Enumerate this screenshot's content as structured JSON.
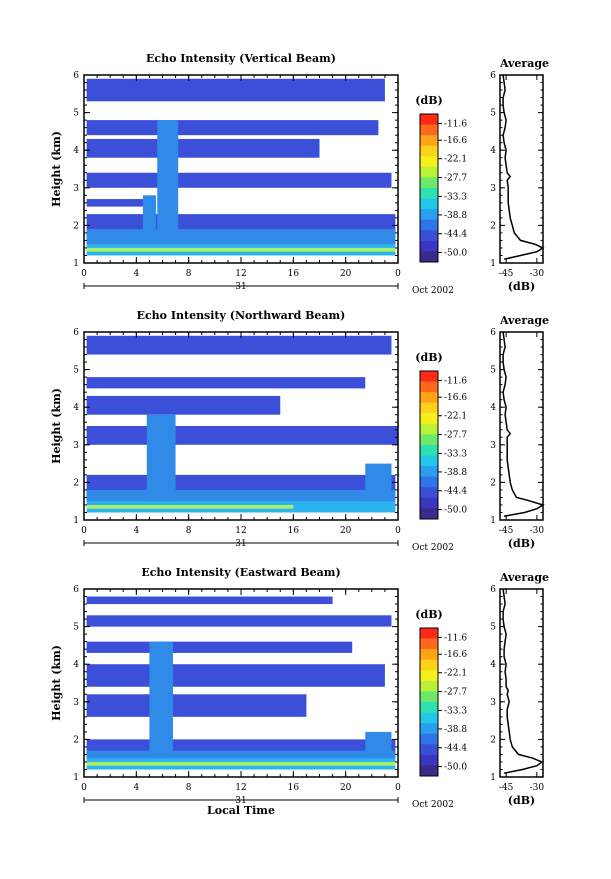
{
  "chart_data": [
    {
      "type": "heatmap",
      "title": "Echo Intensity (Vertical Beam)",
      "ylabel": "Height (km)",
      "xlabel": "",
      "x_ticks": [
        "0",
        "4",
        "8",
        "12",
        "16",
        "20",
        "0"
      ],
      "y_ticks": [
        "1",
        "2",
        "3",
        "4",
        "5",
        "6"
      ],
      "xlim": [
        0,
        24
      ],
      "ylim": [
        1,
        6
      ],
      "date_label": "31",
      "month_label": "Oct 2002",
      "colorbar": {
        "label": "(dB)",
        "ticks": [
          "-11.6",
          "-16.6",
          "-22.1",
          "-27.7",
          "-33.3",
          "-38.8",
          "-44.4",
          "-50.0"
        ],
        "range": [
          -52.8,
          -8.8
        ]
      },
      "profile": {
        "title": "Average",
        "xlabel": "(dB)",
        "x_ticks": [
          "-45",
          "-30"
        ],
        "xlim": [
          -48,
          -27
        ],
        "heights": [
          1.1,
          1.2,
          1.3,
          1.4,
          1.5,
          1.6,
          1.8,
          2.0,
          2.2,
          2.4,
          2.6,
          2.8,
          3.0,
          3.2,
          3.3,
          3.4,
          3.6,
          3.8,
          4.0,
          4.2,
          4.4,
          4.6,
          4.8,
          5.0,
          5.2,
          5.4,
          5.6,
          5.8,
          6.0
        ],
        "values": [
          -46,
          -38,
          -30,
          -27,
          -31,
          -38,
          -41,
          -42,
          -43,
          -43.5,
          -44,
          -44,
          -44,
          -44.5,
          -43,
          -44.5,
          -45,
          -45.5,
          -45,
          -46,
          -46.5,
          -45.5,
          -45,
          -46,
          -46.5,
          -46.5,
          -45.5,
          -46,
          -46.5
        ]
      },
      "bands": [
        {
          "y0": 1.2,
          "y1": 1.5,
          "x0": 0.2,
          "x1": 23.8,
          "c": "#2bb3f0"
        },
        {
          "y0": 1.3,
          "y1": 1.4,
          "x0": 0.2,
          "x1": 23.8,
          "c": "#a9f06a"
        },
        {
          "y0": 1.5,
          "y1": 2.3,
          "x0": 0.2,
          "x1": 23.8,
          "c": "#3b4fd8"
        },
        {
          "y0": 1.5,
          "y1": 1.9,
          "x0": 0.2,
          "x1": 23.8,
          "c": "#2f8ae8"
        },
        {
          "y0": 2.5,
          "y1": 2.7,
          "x0": 0.2,
          "x1": 5.0,
          "c": "#3b4fd8"
        },
        {
          "y0": 3.0,
          "y1": 3.4,
          "x0": 0.2,
          "x1": 23.5,
          "c": "#3b4fd8"
        },
        {
          "y0": 3.8,
          "y1": 4.3,
          "x0": 0.2,
          "x1": 18.0,
          "c": "#3b4fd8"
        },
        {
          "y0": 4.4,
          "y1": 4.8,
          "x0": 0.2,
          "x1": 22.5,
          "c": "#3b4fd8"
        },
        {
          "y0": 5.3,
          "y1": 5.9,
          "x0": 0.2,
          "x1": 23.0,
          "c": "#3b4fd8"
        },
        {
          "y0": 1.5,
          "y1": 4.8,
          "x0": 5.6,
          "x1": 7.2,
          "c": "#2f8ae8"
        },
        {
          "y0": 1.5,
          "y1": 2.8,
          "x0": 4.5,
          "x1": 5.5,
          "c": "#2f8ae8"
        }
      ]
    },
    {
      "type": "heatmap",
      "title": "Echo Intensity (Northward Beam)",
      "ylabel": "Height (km)",
      "xlabel": "",
      "x_ticks": [
        "0",
        "4",
        "8",
        "12",
        "16",
        "20",
        "0"
      ],
      "y_ticks": [
        "1",
        "2",
        "3",
        "4",
        "5",
        "6"
      ],
      "xlim": [
        0,
        24
      ],
      "ylim": [
        1,
        6
      ],
      "date_label": "31",
      "month_label": "Oct 2002",
      "colorbar": {
        "label": "(dB)",
        "ticks": [
          "-11.6",
          "-16.6",
          "-22.1",
          "-27.7",
          "-33.3",
          "-38.8",
          "-44.4",
          "-50.0"
        ],
        "range": [
          -52.8,
          -8.8
        ]
      },
      "profile": {
        "title": "Average",
        "xlabel": "(dB)",
        "x_ticks": [
          "-45",
          "-30"
        ],
        "xlim": [
          -48,
          -27
        ],
        "heights": [
          1.1,
          1.2,
          1.3,
          1.4,
          1.5,
          1.6,
          1.8,
          2.0,
          2.2,
          2.4,
          2.6,
          2.8,
          3.0,
          3.2,
          3.3,
          3.4,
          3.6,
          3.8,
          4.0,
          4.2,
          4.4,
          4.6,
          4.8,
          5.0,
          5.2,
          5.4,
          5.6,
          5.8,
          6.0
        ],
        "values": [
          -46,
          -36,
          -30,
          -27,
          -33,
          -40,
          -42,
          -43,
          -43.5,
          -44,
          -44.5,
          -44.5,
          -44.5,
          -44.5,
          -43,
          -44.5,
          -45,
          -45.5,
          -45,
          -46,
          -46.5,
          -45.5,
          -45,
          -46,
          -46.5,
          -46.5,
          -45.5,
          -46,
          -46.5
        ]
      },
      "bands": [
        {
          "y0": 1.2,
          "y1": 1.5,
          "x0": 0.2,
          "x1": 23.8,
          "c": "#2bb3f0"
        },
        {
          "y0": 1.3,
          "y1": 1.4,
          "x0": 0.2,
          "x1": 16.0,
          "c": "#a9f06a"
        },
        {
          "y0": 1.5,
          "y1": 2.2,
          "x0": 0.2,
          "x1": 23.8,
          "c": "#3b4fd8"
        },
        {
          "y0": 1.5,
          "y1": 1.8,
          "x0": 0.2,
          "x1": 23.8,
          "c": "#2f8ae8"
        },
        {
          "y0": 3.0,
          "y1": 3.5,
          "x0": 0.2,
          "x1": 24.0,
          "c": "#3b4fd8"
        },
        {
          "y0": 3.8,
          "y1": 4.3,
          "x0": 0.2,
          "x1": 15.0,
          "c": "#3b4fd8"
        },
        {
          "y0": 4.5,
          "y1": 4.8,
          "x0": 0.2,
          "x1": 21.5,
          "c": "#3b4fd8"
        },
        {
          "y0": 5.4,
          "y1": 5.9,
          "x0": 0.2,
          "x1": 23.5,
          "c": "#3b4fd8"
        },
        {
          "y0": 1.5,
          "y1": 3.8,
          "x0": 4.8,
          "x1": 7.0,
          "c": "#2f8ae8"
        },
        {
          "y0": 1.5,
          "y1": 2.5,
          "x0": 21.5,
          "x1": 23.5,
          "c": "#2f8ae8"
        }
      ]
    },
    {
      "type": "heatmap",
      "title": "Echo Intensity (Eastward Beam)",
      "ylabel": "Height (km)",
      "xlabel": "Local Time",
      "x_ticks": [
        "0",
        "4",
        "8",
        "12",
        "16",
        "20",
        "0"
      ],
      "y_ticks": [
        "1",
        "2",
        "3",
        "4",
        "5",
        "6"
      ],
      "xlim": [
        0,
        24
      ],
      "ylim": [
        1,
        6
      ],
      "date_label": "31",
      "month_label": "Oct 2002",
      "colorbar": {
        "label": "(dB)",
        "ticks": [
          "-11.6",
          "-16.6",
          "-22.1",
          "-27.7",
          "-33.3",
          "-38.8",
          "-44.4",
          "-50.0"
        ],
        "range": [
          -52.8,
          -8.8
        ]
      },
      "profile": {
        "title": "Average",
        "xlabel": "(dB)",
        "x_ticks": [
          "-45",
          "-30"
        ],
        "xlim": [
          -48,
          -27
        ],
        "heights": [
          1.1,
          1.2,
          1.3,
          1.4,
          1.5,
          1.6,
          1.8,
          2.0,
          2.2,
          2.4,
          2.6,
          2.8,
          3.0,
          3.2,
          3.3,
          3.4,
          3.6,
          3.8,
          4.0,
          4.2,
          4.4,
          4.6,
          4.8,
          5.0,
          5.2,
          5.4,
          5.6,
          5.8,
          6.0
        ],
        "values": [
          -46,
          -37,
          -30,
          -27.5,
          -32,
          -39,
          -42,
          -43,
          -43.5,
          -44,
          -44.5,
          -44.5,
          -43.5,
          -44.5,
          -44,
          -45,
          -45,
          -45.5,
          -45,
          -46,
          -46,
          -45.5,
          -45,
          -46,
          -46.5,
          -46.5,
          -45.5,
          -46,
          -46.5
        ]
      },
      "bands": [
        {
          "y0": 1.2,
          "y1": 1.5,
          "x0": 0.2,
          "x1": 23.8,
          "c": "#2bb3f0"
        },
        {
          "y0": 1.3,
          "y1": 1.4,
          "x0": 0.2,
          "x1": 23.8,
          "c": "#a9f06a"
        },
        {
          "y0": 1.5,
          "y1": 2.0,
          "x0": 0.2,
          "x1": 23.8,
          "c": "#3b4fd8"
        },
        {
          "y0": 1.5,
          "y1": 1.7,
          "x0": 0.2,
          "x1": 23.8,
          "c": "#2f8ae8"
        },
        {
          "y0": 2.6,
          "y1": 3.2,
          "x0": 0.2,
          "x1": 17.0,
          "c": "#3b4fd8"
        },
        {
          "y0": 3.4,
          "y1": 4.0,
          "x0": 0.2,
          "x1": 23.0,
          "c": "#3b4fd8"
        },
        {
          "y0": 4.3,
          "y1": 4.6,
          "x0": 0.2,
          "x1": 20.5,
          "c": "#3b4fd8"
        },
        {
          "y0": 5.0,
          "y1": 5.3,
          "x0": 0.2,
          "x1": 23.5,
          "c": "#3b4fd8"
        },
        {
          "y0": 5.6,
          "y1": 5.8,
          "x0": 0.2,
          "x1": 19.0,
          "c": "#3b4fd8"
        },
        {
          "y0": 1.5,
          "y1": 4.6,
          "x0": 5.0,
          "x1": 6.8,
          "c": "#2f8ae8"
        },
        {
          "y0": 1.5,
          "y1": 2.2,
          "x0": 21.5,
          "x1": 23.5,
          "c": "#2f8ae8"
        }
      ]
    }
  ],
  "colorscale": [
    "#ff2a1a",
    "#ff6a1a",
    "#ffa31a",
    "#ffd21a",
    "#f5f01a",
    "#b8f03a",
    "#6ee86a",
    "#2fe0b0",
    "#22c8e8",
    "#2a9ff0",
    "#2f74e8",
    "#3a4fd8",
    "#3b36c0",
    "#3a2a8a"
  ]
}
